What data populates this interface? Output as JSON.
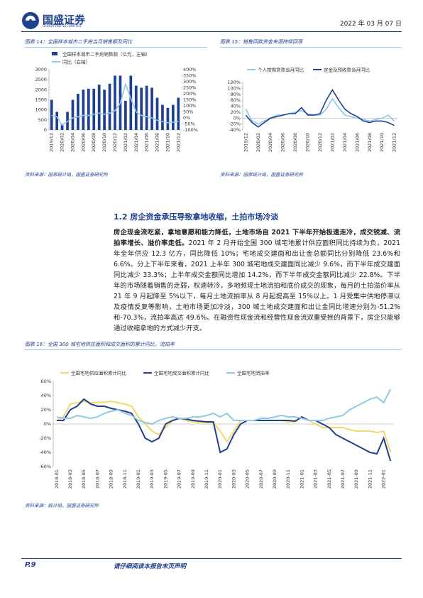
{
  "header": {
    "logo": "国盛证券",
    "logo_en": "GUOSHENG SECURITIES",
    "date": "2022 年 03 月 07 日"
  },
  "figures": [
    {
      "caption": "图表 14：全国样本城市二手房当月销售额及同比",
      "source": "资料来源：国家统计局，国盛证券研究所",
      "chart": {
        "type": "bar",
        "categories": [
          "2019/12",
          null,
          "2020/02",
          null,
          "2020/04",
          null,
          "2020/06",
          null,
          "2020/08",
          null,
          "2020/10",
          null,
          "2020/12",
          null,
          "2021/02",
          null,
          "2021/04",
          null,
          "2021/06",
          null,
          "2021/08",
          null,
          "2021/10",
          null,
          "2021/12"
        ],
        "series": [
          {
            "name": "全国样本城市二手房销售额（亿元，左轴）",
            "type": "bar",
            "color": "#1f3f8f",
            "values": [
              1500,
              900,
              300,
              900,
              1500,
              1800,
              2000,
              2050,
              2050,
              2250,
              2000,
              2300,
              2700,
              2700,
              1450,
              2700,
              2200,
              2100,
              2200,
              2100,
              1600,
              1250,
              1100,
              1250,
              1600
            ]
          },
          {
            "name": "同比（右轴）",
            "type": "line",
            "axis": "y2",
            "color": "#8fc8e8",
            "values": [
              20,
              10,
              -60,
              -30,
              0,
              10,
              20,
              20,
              30,
              40,
              30,
              40,
              60,
              120,
              280,
              160,
              50,
              20,
              10,
              0,
              -20,
              -30,
              -40,
              -35,
              -30
            ]
          }
        ],
        "ylim": [
          0,
          3000
        ],
        "yticks": [
          0,
          500,
          1000,
          1500,
          2000,
          2500,
          3000
        ],
        "y2lim": [
          -100,
          400
        ],
        "y2ticks": [
          {
            "value": -100,
            "label": "-100%"
          },
          {
            "value": -50,
            "label": "-50%"
          },
          {
            "value": 0,
            "label": "0%"
          },
          {
            "value": 50,
            "label": "50%"
          },
          {
            "value": 100,
            "label": "100%"
          },
          {
            "value": 150,
            "label": "150%"
          },
          {
            "value": 200,
            "label": "200%"
          },
          {
            "value": 250,
            "label": "250%"
          },
          {
            "value": 300,
            "label": "300%"
          },
          {
            "value": 350,
            "label": "350%"
          },
          {
            "value": 400,
            "label": "400%"
          }
        ],
        "legend": "upper left"
      }
    },
    {
      "caption": "图表 15：销售回款资金来源持续回落",
      "source": "资料来源：国家统计局，国盛证券研究所",
      "chart": {
        "type": "line",
        "categories": [
          "2019/12",
          null,
          "2020/02",
          null,
          "2020/04",
          null,
          "2020/06",
          null,
          "2020/08",
          null,
          "2020/10",
          null,
          "2020/12",
          null,
          "2021/02",
          null,
          "2021/04",
          null,
          "2021/06",
          null,
          "2021/08",
          null,
          "2021/10",
          null,
          "2021/12"
        ],
        "series": [
          {
            "name": "个人按揭贷款当月同比",
            "color": "#8fc8e8",
            "values": [
              30,
              -10,
              -20,
              -10,
              0,
              10,
              10,
              15,
              20,
              25,
              15,
              10,
              10,
              30,
              65,
              35,
              10,
              5,
              0,
              -5,
              -10,
              -5,
              0,
              10,
              -10
            ]
          },
          {
            "name": "定金及预收款当月同比",
            "color": "#1f3f8f",
            "values": [
              10,
              -15,
              -30,
              -15,
              0,
              5,
              10,
              15,
              15,
              35,
              10,
              10,
              15,
              60,
              95,
              60,
              30,
              15,
              5,
              -10,
              -15,
              -10,
              -10,
              -15,
              -25
            ]
          }
        ],
        "ylim": [
          -40,
          120
        ],
        "yticks": [
          {
            "value": -40,
            "label": "-40%"
          },
          {
            "value": -20,
            "label": "-20%"
          },
          {
            "value": 0,
            "label": "0%"
          },
          {
            "value": 20,
            "label": "20%"
          },
          {
            "value": 40,
            "label": "40%"
          },
          {
            "value": 60,
            "label": "60%"
          },
          {
            "value": 80,
            "label": "80%"
          },
          {
            "value": 100,
            "label": "100%"
          },
          {
            "value": 120,
            "label": "120%"
          }
        ],
        "legend": "upper"
      }
    }
  ],
  "section": {
    "heading": "1.2 房企资金承压导致拿地收缩，土拍市场冷淡",
    "lead": "房企现金流吃紧，拿地意愿和能力降低，土地市场自 2021 下半年开始极速走冷，成交锐减、流拍率增长、溢价率走低。",
    "body": "2021 年 2 月开始全国 300 城宅地累计供应面积同比持续为负，2021 年全年供应 12.3 亿方，同比降低 10%；宅地成交建面和出让金总额同比分别降低 23.6%和 6.6%。分上下半年来看，2021 上半年 300 城宅地成交建面同比减少 9.6%，而下半年成交建面同比减少 33.3%；上半年成交金额同比增加 14.2%，而下半年成交金额同比减少 22.8%。下半年的市场随着销售的走弱，权速转冷，多地频现土地流拍和底价成交的现象，每月的土拍溢价率从 21 年 9 月起降至 5%以下，每月土地流拍率从 8 月起提高至 15%以上。1 月受集中供地停滞以及疫情反复等影响，土地市场更加冷淡，300 城土地成交建面和出让金同比增速分别为-51.2%和-70.3%，流拍率高达 49.6%。在融资性现金流和经营性现金流双重受挫的背景下，房企只能够通过收缩拿地的方式减少开支。"
  },
  "figure16": {
    "caption": "图表 16：全国 300 城宅地供应面积和成交面积的累计同比，流拍率",
    "source": "资料来源：统计局，国盛证券研究所",
    "chart": {
      "type": "line",
      "categories": [
        "2018-01",
        null,
        "2018-03",
        null,
        "2018-05",
        null,
        "2018-07",
        null,
        "2018-09",
        null,
        "2018-11",
        null,
        "2019-01",
        null,
        "2019-03",
        null,
        "2019-05",
        null,
        "2019-07",
        null,
        "2019-09",
        null,
        "2019-11",
        null,
        "2020-01",
        null,
        "2020-03",
        null,
        "2020-05",
        null,
        "2020-07",
        null,
        "2020-09",
        null,
        "2020-11",
        null,
        "2021-01",
        null,
        "2021-03",
        null,
        "2021-05",
        null,
        "2021-07",
        null,
        "2021-09",
        null,
        "2021-11",
        null,
        "2022-01",
        null
      ],
      "series": [
        {
          "name": "全国宅地供应面积累计同比",
          "color": "#f5d76e",
          "values": [
            5,
            10,
            28,
            30,
            32,
            30,
            30,
            31,
            32,
            30,
            28,
            25,
            10,
            0,
            -10,
            -15,
            -5,
            5,
            8,
            5,
            3,
            2,
            2,
            2,
            -10,
            -25,
            -10,
            5,
            5,
            5,
            5,
            5,
            5,
            5,
            3,
            3,
            10,
            5,
            0,
            -5,
            -5,
            -5,
            -5,
            -8,
            -10,
            -10,
            -10,
            -12,
            -10,
            -40
          ]
        },
        {
          "name": "全国宅地成交面积累计同比",
          "color": "#1f3f8f",
          "values": [
            5,
            5,
            20,
            25,
            35,
            28,
            25,
            25,
            22,
            20,
            18,
            15,
            0,
            -20,
            -25,
            -20,
            0,
            5,
            8,
            7,
            5,
            4,
            3,
            3,
            -40,
            -35,
            -15,
            0,
            5,
            5,
            5,
            5,
            5,
            5,
            5,
            4,
            10,
            5,
            5,
            0,
            -5,
            -15,
            -20,
            -25,
            -30,
            -35,
            -40,
            -42,
            -20,
            -52
          ]
        },
        {
          "name": "全国宅地流拍率",
          "color": "#8fc8e8",
          "values": [
            10,
            8,
            8,
            12,
            10,
            8,
            10,
            15,
            18,
            20,
            15,
            12,
            5,
            2,
            0,
            5,
            8,
            10,
            8,
            8,
            10,
            10,
            12,
            15,
            10,
            15,
            5,
            5,
            5,
            5,
            8,
            8,
            10,
            12,
            10,
            10,
            8,
            5,
            5,
            5,
            8,
            10,
            12,
            20,
            25,
            30,
            35,
            38,
            30,
            49
          ]
        }
      ],
      "ylim": [
        -60,
        60
      ],
      "yticks": [
        {
          "value": -60,
          "label": "-60%"
        },
        {
          "value": -40,
          "label": "-40%"
        },
        {
          "value": -20,
          "label": "-20%"
        },
        {
          "value": 0,
          "label": "0%"
        },
        {
          "value": 20,
          "label": "20%"
        },
        {
          "value": 40,
          "label": "40%"
        },
        {
          "value": 60,
          "label": "60%"
        }
      ],
      "legend": "upper"
    }
  },
  "footer": {
    "page": "P.9",
    "note": "请仔细阅读本报告末页声明"
  }
}
